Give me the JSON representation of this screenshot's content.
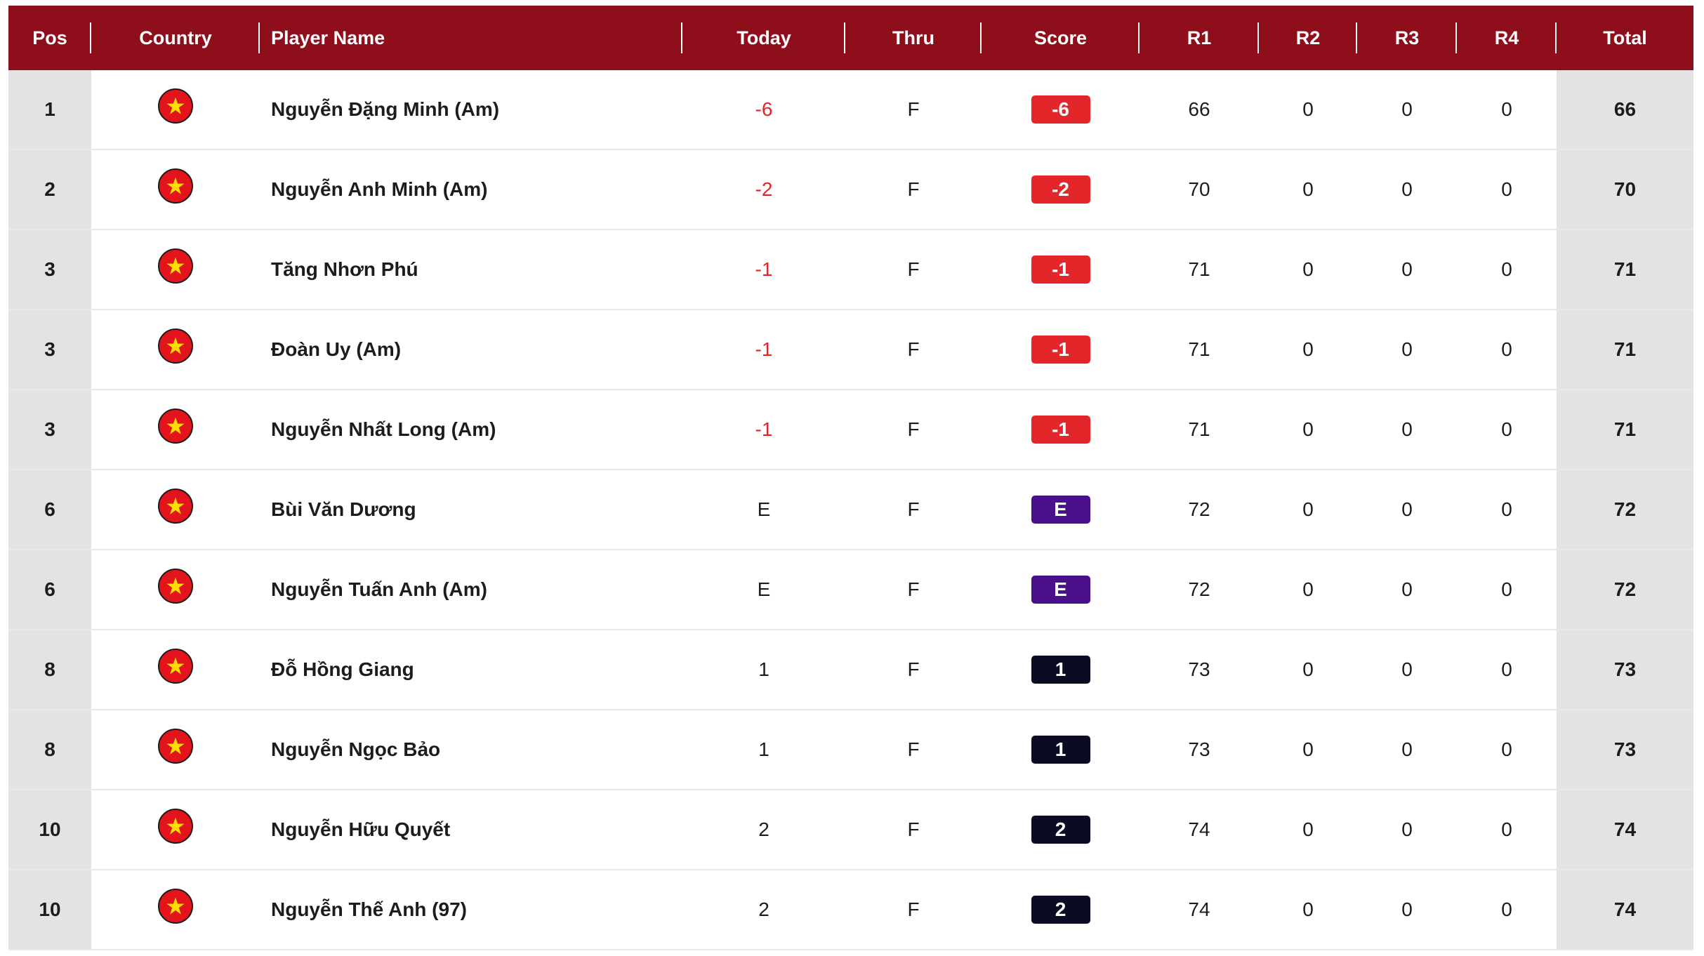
{
  "header": {
    "pos": "Pos",
    "country": "Country",
    "player_name": "Player Name",
    "today": "Today",
    "thru": "Thru",
    "score": "Score",
    "r1": "R1",
    "r2": "R2",
    "r3": "R3",
    "r4": "R4",
    "total": "Total"
  },
  "colors": {
    "header_bg": "#8f0e1c",
    "under_par": "#e3262a",
    "even_par": "#4b0f8c",
    "over_par": "#0b0c24"
  },
  "flag_icon": "vietnam-flag-icon",
  "rows": [
    {
      "pos": "1",
      "name": "Nguyễn Đặng Minh (Am)",
      "today": "-6",
      "thru": "F",
      "score": "-6",
      "r1": "66",
      "r2": "0",
      "r3": "0",
      "r4": "0",
      "total": "66",
      "status": "under"
    },
    {
      "pos": "2",
      "name": "Nguyễn Anh Minh (Am)",
      "today": "-2",
      "thru": "F",
      "score": "-2",
      "r1": "70",
      "r2": "0",
      "r3": "0",
      "r4": "0",
      "total": "70",
      "status": "under"
    },
    {
      "pos": "3",
      "name": "Tăng Nhơn Phú",
      "today": "-1",
      "thru": "F",
      "score": "-1",
      "r1": "71",
      "r2": "0",
      "r3": "0",
      "r4": "0",
      "total": "71",
      "status": "under"
    },
    {
      "pos": "3",
      "name": "Đoàn Uy (Am)",
      "today": "-1",
      "thru": "F",
      "score": "-1",
      "r1": "71",
      "r2": "0",
      "r3": "0",
      "r4": "0",
      "total": "71",
      "status": "under"
    },
    {
      "pos": "3",
      "name": "Nguyễn Nhất Long (Am)",
      "today": "-1",
      "thru": "F",
      "score": "-1",
      "r1": "71",
      "r2": "0",
      "r3": "0",
      "r4": "0",
      "total": "71",
      "status": "under"
    },
    {
      "pos": "6",
      "name": "Bùi Văn Dương",
      "today": "E",
      "thru": "F",
      "score": "E",
      "r1": "72",
      "r2": "0",
      "r3": "0",
      "r4": "0",
      "total": "72",
      "status": "even"
    },
    {
      "pos": "6",
      "name": "Nguyễn Tuấn Anh (Am)",
      "today": "E",
      "thru": "F",
      "score": "E",
      "r1": "72",
      "r2": "0",
      "r3": "0",
      "r4": "0",
      "total": "72",
      "status": "even"
    },
    {
      "pos": "8",
      "name": "Đỗ Hồng Giang",
      "today": "1",
      "thru": "F",
      "score": "1",
      "r1": "73",
      "r2": "0",
      "r3": "0",
      "r4": "0",
      "total": "73",
      "status": "over"
    },
    {
      "pos": "8",
      "name": "Nguyễn Ngọc Bảo",
      "today": "1",
      "thru": "F",
      "score": "1",
      "r1": "73",
      "r2": "0",
      "r3": "0",
      "r4": "0",
      "total": "73",
      "status": "over"
    },
    {
      "pos": "10",
      "name": "Nguyễn Hữu Quyết",
      "today": "2",
      "thru": "F",
      "score": "2",
      "r1": "74",
      "r2": "0",
      "r3": "0",
      "r4": "0",
      "total": "74",
      "status": "over"
    },
    {
      "pos": "10",
      "name": "Nguyễn Thế Anh (97)",
      "today": "2",
      "thru": "F",
      "score": "2",
      "r1": "74",
      "r2": "0",
      "r3": "0",
      "r4": "0",
      "total": "74",
      "status": "over"
    }
  ]
}
